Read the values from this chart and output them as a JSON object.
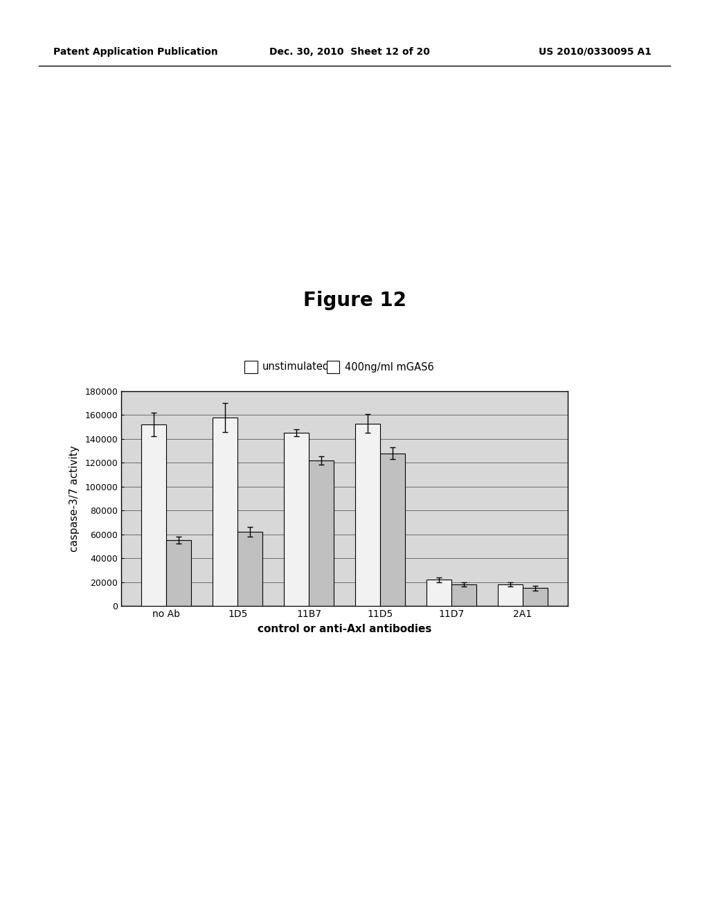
{
  "figure_title": "Figure 12",
  "header_left": "Patent Application Publication",
  "header_date": "Dec. 30, 2010  Sheet 12 of 20",
  "header_right": "US 2010/0330095 A1",
  "categories": [
    "no Ab",
    "1D5",
    "11B7",
    "11D5",
    "11D7",
    "2A1"
  ],
  "unstimulated": [
    152000,
    158000,
    145000,
    153000,
    22000,
    18000
  ],
  "mgas6": [
    55000,
    62000,
    122000,
    128000,
    18000,
    15000
  ],
  "unstimulated_err": [
    10000,
    12000,
    3000,
    8000,
    2000,
    2000
  ],
  "mgas6_err": [
    3000,
    4000,
    3500,
    5000,
    2000,
    2000
  ],
  "ylabel": "caspase-3/7 activity",
  "xlabel": "control or anti-Axl antibodies",
  "legend_labels": [
    "unstimulated",
    "400ng/ml mGAS6"
  ],
  "ylim": [
    0,
    180000
  ],
  "yticks": [
    0,
    20000,
    40000,
    60000,
    80000,
    100000,
    120000,
    140000,
    160000,
    180000
  ],
  "bar_width": 0.35,
  "color_unstimulated": "#f2f2f2",
  "color_mgas6": "#c0c0c0",
  "background_color": "#ffffff",
  "plot_background": "#d8d8d8"
}
